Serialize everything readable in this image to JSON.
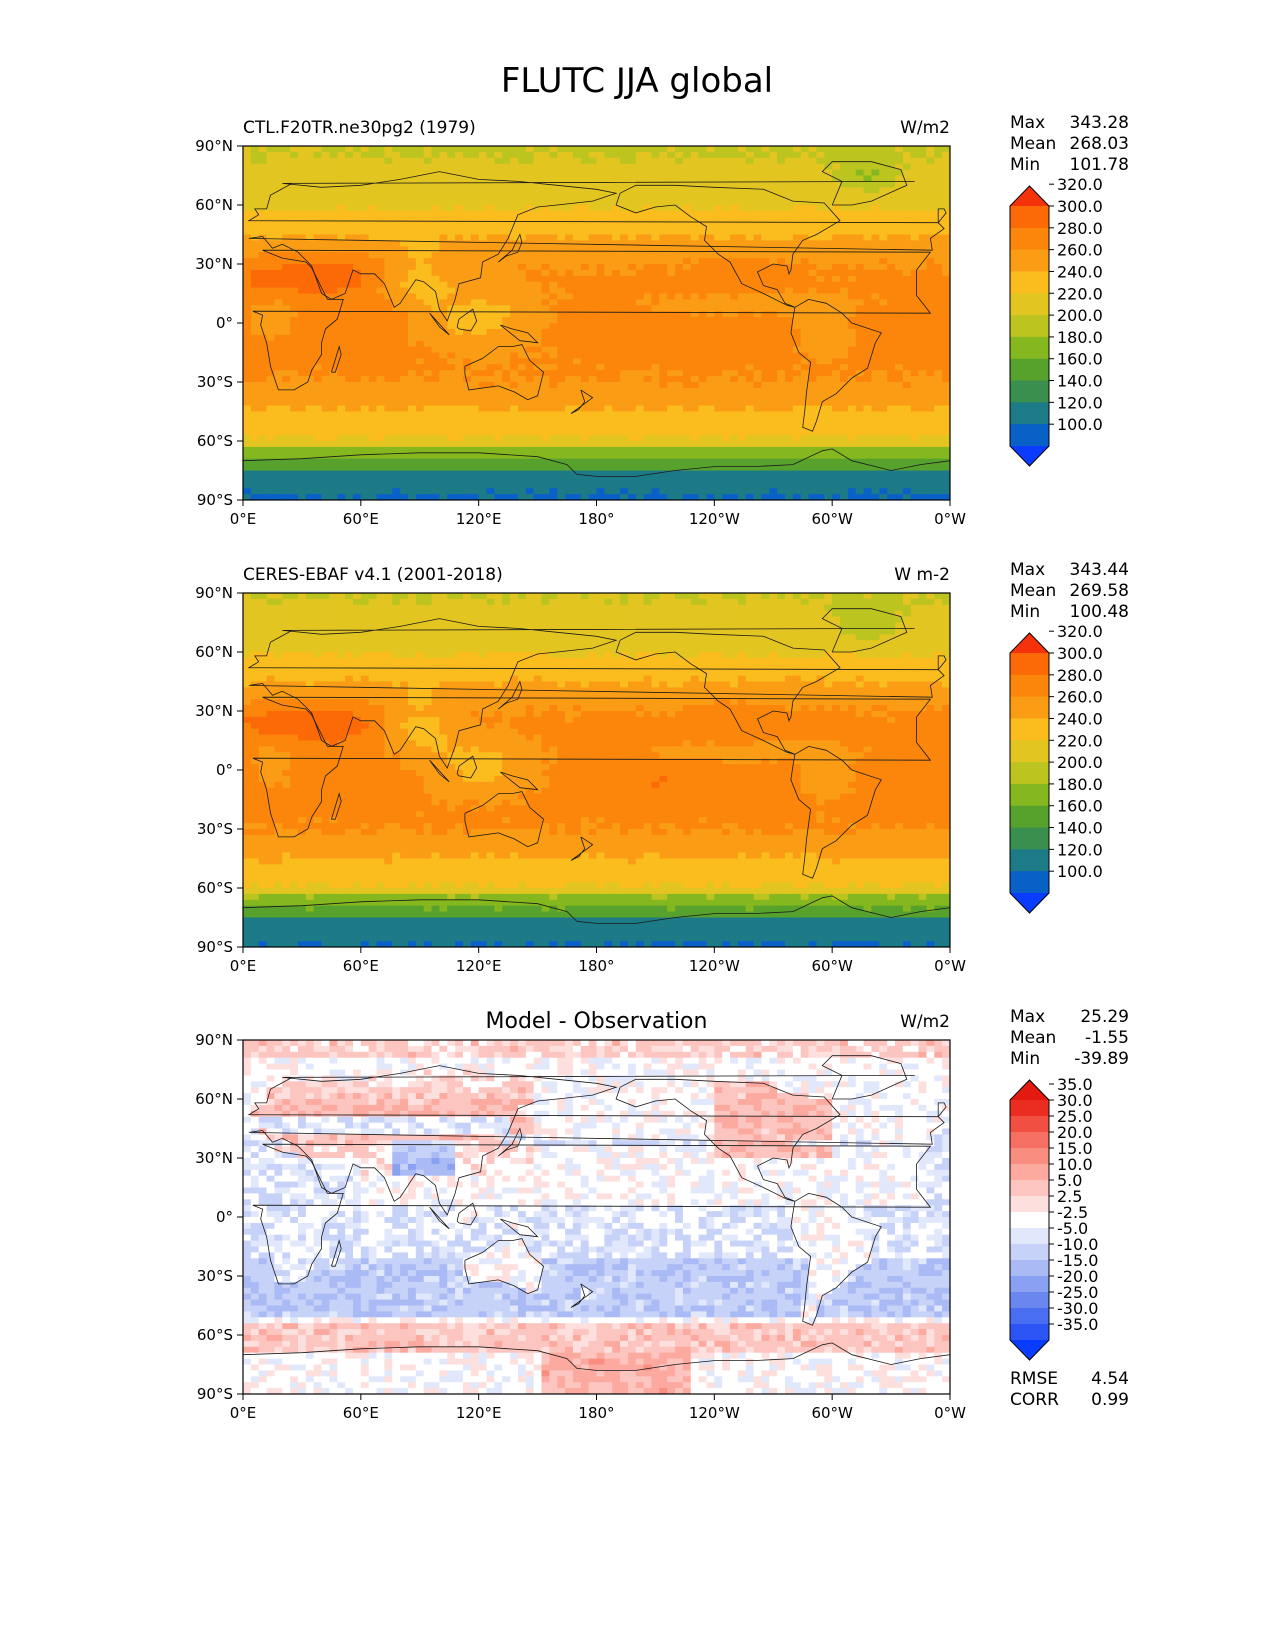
{
  "figure": {
    "title": "FLUTC JJA global"
  },
  "chart_data": [
    {
      "type": "heatmap",
      "id": "model",
      "title_left": "CTL.F20TR.ne30pg2 (1979)",
      "title_center": "",
      "units": "W/m2",
      "stats": [
        {
          "label": "Max",
          "value": "343.28"
        },
        {
          "label": "Mean",
          "value": "268.03"
        },
        {
          "label": "Min",
          "value": "101.78"
        }
      ],
      "colorbar": {
        "extend": "both",
        "levels": [
          100,
          120,
          140,
          160,
          180,
          200,
          220,
          240,
          260,
          280,
          300,
          320
        ],
        "tick_labels": [
          "100.0",
          "120.0",
          "140.0",
          "160.0",
          "180.0",
          "200.0",
          "220.0",
          "240.0",
          "260.0",
          "280.0",
          "300.0",
          "320.0"
        ],
        "colors": [
          "#0a3cff",
          "#0961c8",
          "#1d7a87",
          "#3a8e4e",
          "#57a22c",
          "#85b71f",
          "#bcc41f",
          "#e3c521",
          "#fbbd1e",
          "#fb9d14",
          "#fb860b",
          "#fb6a06",
          "#f5320a"
        ]
      },
      "x_ticks": [
        "0°E",
        "60°E",
        "120°E",
        "180°",
        "120°W",
        "60°W",
        "0°W"
      ],
      "y_ticks": [
        "90°N",
        "60°N",
        "30°N",
        "0°",
        "30°S",
        "60°S",
        "90°S"
      ],
      "xlim": [
        0,
        360
      ],
      "ylim": [
        -90,
        90
      ]
    },
    {
      "type": "heatmap",
      "id": "obs",
      "title_left": "CERES-EBAF v4.1 (2001-2018)",
      "title_center": "",
      "units": "W m-2",
      "stats": [
        {
          "label": "Max",
          "value": "343.44"
        },
        {
          "label": "Mean",
          "value": "269.58"
        },
        {
          "label": "Min",
          "value": "100.48"
        }
      ],
      "colorbar": {
        "extend": "both",
        "levels": [
          100,
          120,
          140,
          160,
          180,
          200,
          220,
          240,
          260,
          280,
          300,
          320
        ],
        "tick_labels": [
          "100.0",
          "120.0",
          "140.0",
          "160.0",
          "180.0",
          "200.0",
          "220.0",
          "240.0",
          "260.0",
          "280.0",
          "300.0",
          "320.0"
        ],
        "colors": [
          "#0a3cff",
          "#0961c8",
          "#1d7a87",
          "#3a8e4e",
          "#57a22c",
          "#85b71f",
          "#bcc41f",
          "#e3c521",
          "#fbbd1e",
          "#fb9d14",
          "#fb860b",
          "#fb6a06",
          "#f5320a"
        ]
      },
      "x_ticks": [
        "0°E",
        "60°E",
        "120°E",
        "180°",
        "120°W",
        "60°W",
        "0°W"
      ],
      "y_ticks": [
        "90°N",
        "60°N",
        "30°N",
        "0°",
        "30°S",
        "60°S",
        "90°S"
      ],
      "xlim": [
        0,
        360
      ],
      "ylim": [
        -90,
        90
      ]
    },
    {
      "type": "heatmap",
      "id": "diff",
      "title_left": "",
      "title_center": "Model - Observation",
      "units": "W/m2",
      "stats": [
        {
          "label": "Max",
          "value": "25.29"
        },
        {
          "label": "Mean",
          "value": "-1.55"
        },
        {
          "label": "Min",
          "value": "-39.89"
        }
      ],
      "metrics": [
        {
          "label": "RMSE",
          "value": "4.54"
        },
        {
          "label": "CORR",
          "value": "0.99"
        }
      ],
      "colorbar": {
        "extend": "both",
        "levels": [
          -35,
          -30,
          -25,
          -20,
          -15,
          -10,
          -5,
          -2.5,
          2.5,
          5,
          10,
          15,
          20,
          25,
          30,
          35
        ],
        "tick_labels": [
          "-35.0",
          "-30.0",
          "-25.0",
          "-20.0",
          "-15.0",
          "-10.0",
          "-5.0",
          "-2.5",
          "2.5",
          "5.0",
          "10.0",
          "15.0",
          "20.0",
          "25.0",
          "30.0",
          "35.0"
        ],
        "colors": [
          "#0a3cff",
          "#2d55f5",
          "#4a6ef2",
          "#6a87f0",
          "#8aa0f2",
          "#aabaf4",
          "#c7d2f8",
          "#e2e8fb",
          "#ffffff",
          "#fde0dd",
          "#fcc5c0",
          "#fca99f",
          "#f98d80",
          "#f57062",
          "#f04f42",
          "#ea2d20",
          "#e41a10"
        ]
      },
      "x_ticks": [
        "0°E",
        "60°E",
        "120°E",
        "180°",
        "120°W",
        "60°W",
        "0°W"
      ],
      "y_ticks": [
        "90°N",
        "60°N",
        "30°N",
        "0°",
        "30°S",
        "60°S",
        "90°S"
      ],
      "xlim": [
        0,
        360
      ],
      "ylim": [
        -90,
        90
      ]
    }
  ]
}
